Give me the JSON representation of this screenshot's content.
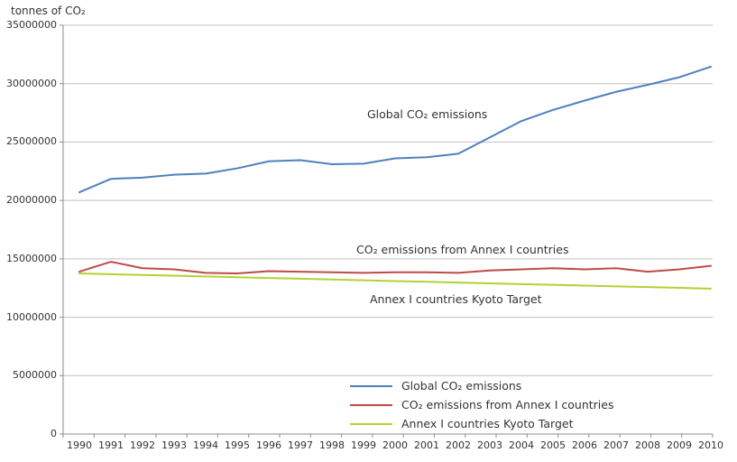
{
  "chart_data": {
    "type": "line",
    "title": "tonnes of CO₂",
    "x": [
      1990,
      1991,
      1992,
      1993,
      1994,
      1995,
      1996,
      1997,
      1998,
      1999,
      2000,
      2001,
      2002,
      2003,
      2004,
      2005,
      2006,
      2007,
      2008,
      2009,
      2010
    ],
    "series": [
      {
        "name": "Global CO₂ emissions",
        "color": "#4f81bd",
        "values": [
          20700000,
          21850000,
          21950000,
          22200000,
          22300000,
          22750000,
          23350000,
          23450000,
          23100000,
          23150000,
          23600000,
          23700000,
          24000000,
          25400000,
          26800000,
          27750000,
          28550000,
          29300000,
          29900000,
          30550000,
          31450000
        ]
      },
      {
        "name": "CO₂ emissions from Annex I countries",
        "color": "#be4b48",
        "values": [
          13900000,
          14750000,
          14200000,
          14100000,
          13800000,
          13750000,
          13950000,
          13900000,
          13850000,
          13800000,
          13850000,
          13850000,
          13800000,
          14000000,
          14100000,
          14200000,
          14100000,
          14200000,
          13900000,
          14100000,
          14400000
        ]
      },
      {
        "name": "Annex I countries Kyoto Target",
        "color": "#b2d235",
        "values": [
          13750000,
          13685000,
          13620000,
          13555000,
          13490000,
          13425000,
          13360000,
          13295000,
          13230000,
          13165000,
          13100000,
          13035000,
          12970000,
          12905000,
          12840000,
          12775000,
          12710000,
          12645000,
          12580000,
          12515000,
          12450000
        ]
      }
    ],
    "ylim": [
      0,
      35000000
    ],
    "ytick_interval": 5000000,
    "yticks": [
      "0",
      "5000000",
      "10000000",
      "15000000",
      "20000000",
      "25000000",
      "30000000",
      "35000000"
    ],
    "grid": true,
    "legend_position": "bottom-right-inside",
    "axis_color": "#8c8c8c",
    "grid_color": "#c0c0c0"
  }
}
